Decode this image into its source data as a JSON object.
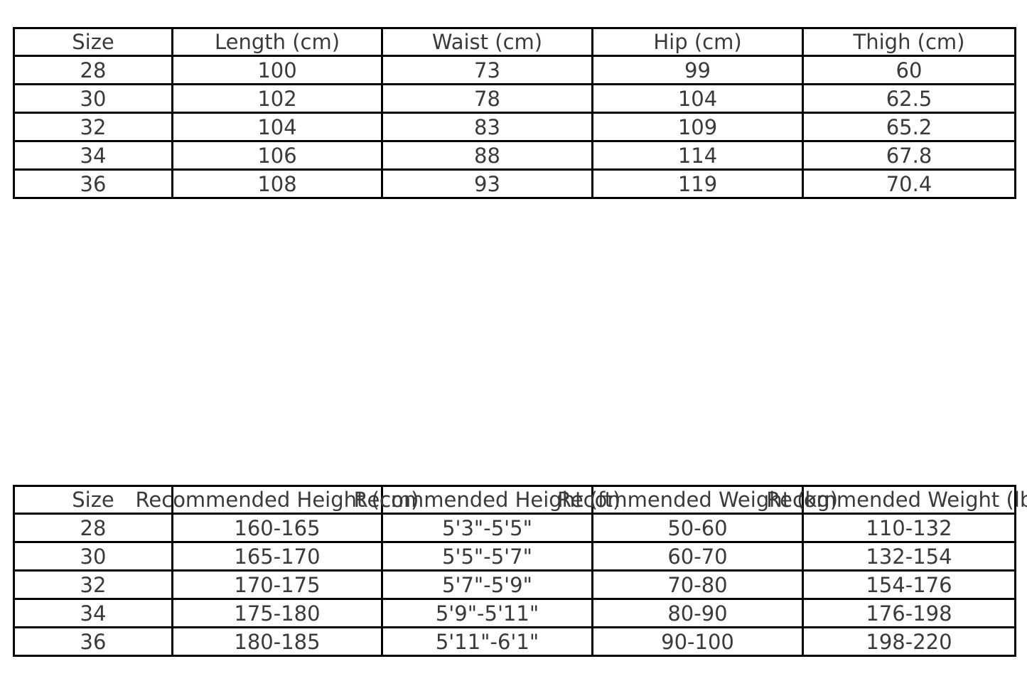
{
  "page": {
    "background_color": "#ffffff",
    "text_color": "#3a3a3a",
    "border_color": "#000000"
  },
  "chart_data": [
    {
      "type": "table",
      "title": "",
      "columns": [
        "Size",
        "Length (cm)",
        "Waist (cm)",
        "Hip (cm)",
        "Thigh (cm)"
      ],
      "rows": [
        [
          "28",
          "100",
          "73",
          "99",
          "60"
        ],
        [
          "30",
          "102",
          "78",
          "104",
          "62.5"
        ],
        [
          "32",
          "104",
          "83",
          "109",
          "65.2"
        ],
        [
          "34",
          "106",
          "88",
          "114",
          "67.8"
        ],
        [
          "36",
          "108",
          "93",
          "119",
          "70.4"
        ]
      ]
    },
    {
      "type": "table",
      "title": "",
      "columns": [
        "Size",
        "Recommended Height (cm)",
        "Recommended Height (ft)",
        "Recommended Weight (kg)",
        "Recommended Weight (lbs)"
      ],
      "rows": [
        [
          "28",
          "160-165",
          "5'3\"-5'5\"",
          "50-60",
          "110-132"
        ],
        [
          "30",
          "165-170",
          "5'5\"-5'7\"",
          "60-70",
          "132-154"
        ],
        [
          "32",
          "170-175",
          "5'7\"-5'9\"",
          "70-80",
          "154-176"
        ],
        [
          "34",
          "175-180",
          "5'9\"-5'11\"",
          "80-90",
          "176-198"
        ],
        [
          "36",
          "180-185",
          "5'11\"-6'1\"",
          "90-100",
          "198-220"
        ]
      ]
    }
  ]
}
